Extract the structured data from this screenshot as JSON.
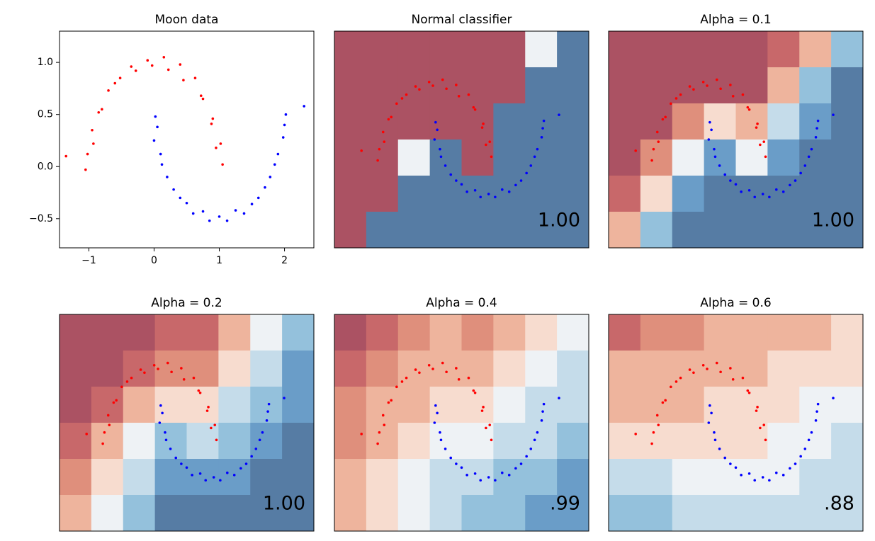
{
  "chart_data": [
    {
      "type": "scatter",
      "title": "Moon data",
      "xlim": [
        -1.45,
        2.45
      ],
      "ylim": [
        -0.78,
        1.3
      ],
      "xticks": [
        {
          "value": -1,
          "label": "−1"
        },
        0,
        1,
        2
      ],
      "yticks": [
        {
          "value": -0.5,
          "label": "−0.5"
        },
        {
          "value": 0,
          "label": "0.0"
        },
        0.5,
        {
          "value": 1,
          "label": "1.0"
        }
      ],
      "series": [
        {
          "color": "#ff0000",
          "x": [
            1.05,
            0.95,
            1.02,
            0.88,
            0.9,
            0.75,
            0.72,
            0.63,
            0.45,
            0.4,
            0.22,
            0.15,
            -0.03,
            -0.1,
            -0.28,
            -0.35,
            -0.52,
            -0.6,
            -0.7,
            -0.8,
            -0.85,
            -0.95,
            -0.93,
            -1.02,
            -1.05,
            -1.35
          ],
          "y": [
            0.02,
            0.18,
            0.22,
            0.41,
            0.46,
            0.65,
            0.68,
            0.85,
            0.83,
            0.98,
            0.93,
            1.05,
            0.97,
            1.02,
            0.92,
            0.96,
            0.85,
            0.8,
            0.73,
            0.55,
            0.52,
            0.35,
            0.22,
            0.12,
            -0.03,
            0.1
          ]
        },
        {
          "color": "#0000ff",
          "x": [
            0.02,
            0.05,
            0.0,
            0.1,
            0.12,
            0.2,
            0.3,
            0.4,
            0.5,
            0.6,
            0.75,
            0.85,
            1.0,
            1.12,
            1.25,
            1.38,
            1.5,
            1.6,
            1.7,
            1.78,
            1.85,
            1.9,
            1.98,
            2.0,
            2.02,
            2.3
          ],
          "y": [
            0.48,
            0.38,
            0.25,
            0.12,
            0.02,
            -0.1,
            -0.22,
            -0.3,
            -0.35,
            -0.45,
            -0.43,
            -0.52,
            -0.48,
            -0.52,
            -0.42,
            -0.45,
            -0.36,
            -0.3,
            -0.2,
            -0.1,
            0.02,
            0.12,
            0.28,
            0.4,
            0.5,
            0.58
          ]
        }
      ]
    },
    {
      "type": "contour",
      "title": "Normal classifier",
      "score": "1.00",
      "xlim": [
        -1.85,
        2.85
      ],
      "ylim": [
        -1.2,
        1.7
      ],
      "colormap": [
        "#ab5263",
        "#c8686a",
        "#df8f7c",
        "#eeb49d",
        "#f7dccf",
        "#eef2f5",
        "#c5dcea",
        "#94c1dc",
        "#6a9dc8",
        "#567ca4"
      ],
      "z": [
        [
          0,
          0,
          0,
          0,
          0,
          0,
          0.5,
          1
        ],
        [
          0,
          0,
          0,
          0,
          0,
          0,
          1,
          1
        ],
        [
          0,
          0,
          0,
          0,
          0,
          1,
          1,
          1
        ],
        [
          0,
          0,
          0.5,
          1,
          0,
          1,
          1,
          1
        ],
        [
          0,
          0,
          1,
          1,
          1,
          1,
          1,
          1
        ],
        [
          0,
          1,
          1,
          1,
          1,
          1,
          1,
          1
        ]
      ]
    },
    {
      "type": "contour",
      "title": "Alpha = 0.1",
      "score": "1.00",
      "xlim": [
        -1.85,
        2.85
      ],
      "ylim": [
        -1.2,
        1.7
      ],
      "colormap": [
        "#ab5263",
        "#c8686a",
        "#df8f7c",
        "#eeb49d",
        "#f7dccf",
        "#eef2f5",
        "#c5dcea",
        "#94c1dc",
        "#6a9dc8",
        "#567ca4"
      ],
      "z": [
        [
          0,
          0,
          0,
          0,
          0,
          0.1,
          0.35,
          0.7
        ],
        [
          0,
          0,
          0,
          0,
          0.05,
          0.3,
          0.7,
          0.9
        ],
        [
          0,
          0.05,
          0.2,
          0.45,
          0.3,
          0.6,
          0.85,
          0.95
        ],
        [
          0.05,
          0.2,
          0.5,
          0.8,
          0.5,
          0.85,
          0.95,
          1
        ],
        [
          0.15,
          0.45,
          0.8,
          0.95,
          0.9,
          0.95,
          1,
          1
        ],
        [
          0.3,
          0.7,
          0.95,
          1,
          1,
          1,
          1,
          1
        ]
      ]
    },
    {
      "type": "contour",
      "title": "Alpha = 0.2",
      "score": "1.00",
      "xlim": [
        -1.85,
        2.85
      ],
      "ylim": [
        -1.2,
        1.7
      ],
      "colormap": [
        "#ab5263",
        "#c8686a",
        "#df8f7c",
        "#eeb49d",
        "#f7dccf",
        "#eef2f5",
        "#c5dcea",
        "#94c1dc",
        "#6a9dc8",
        "#567ca4"
      ],
      "z": [
        [
          0,
          0,
          0.05,
          0.1,
          0.15,
          0.35,
          0.55,
          0.7
        ],
        [
          0,
          0.05,
          0.15,
          0.2,
          0.2,
          0.4,
          0.65,
          0.8
        ],
        [
          0.05,
          0.15,
          0.3,
          0.45,
          0.4,
          0.6,
          0.75,
          0.85
        ],
        [
          0.15,
          0.3,
          0.5,
          0.7,
          0.6,
          0.75,
          0.85,
          0.9
        ],
        [
          0.25,
          0.4,
          0.65,
          0.85,
          0.8,
          0.85,
          0.9,
          0.95
        ],
        [
          0.3,
          0.5,
          0.75,
          0.95,
          0.9,
          0.9,
          0.95,
          0.95
        ]
      ]
    },
    {
      "type": "contour",
      "title": "Alpha = 0.4",
      "score": ".99",
      "xlim": [
        -1.85,
        2.85
      ],
      "ylim": [
        -1.2,
        1.7
      ],
      "colormap": [
        "#ab5263",
        "#c8686a",
        "#df8f7c",
        "#eeb49d",
        "#f7dccf",
        "#eef2f5",
        "#c5dcea",
        "#94c1dc",
        "#6a9dc8",
        "#567ca4"
      ],
      "z": [
        [
          0.05,
          0.15,
          0.25,
          0.3,
          0.2,
          0.35,
          0.45,
          0.5
        ],
        [
          0.15,
          0.25,
          0.3,
          0.3,
          0.3,
          0.45,
          0.55,
          0.6
        ],
        [
          0.2,
          0.3,
          0.35,
          0.45,
          0.45,
          0.55,
          0.6,
          0.65
        ],
        [
          0.25,
          0.35,
          0.45,
          0.55,
          0.55,
          0.6,
          0.65,
          0.7
        ],
        [
          0.3,
          0.4,
          0.5,
          0.6,
          0.65,
          0.7,
          0.75,
          0.8
        ],
        [
          0.35,
          0.45,
          0.55,
          0.65,
          0.75,
          0.75,
          0.8,
          0.85
        ]
      ]
    },
    {
      "type": "contour",
      "title": "Alpha = 0.6",
      "score": ".88",
      "xlim": [
        -1.85,
        2.85
      ],
      "ylim": [
        -1.2,
        1.7
      ],
      "colormap": [
        "#ab5263",
        "#c8686a",
        "#df8f7c",
        "#eeb49d",
        "#f7dccf",
        "#eef2f5",
        "#c5dcea",
        "#94c1dc",
        "#6a9dc8",
        "#567ca4"
      ],
      "z": [
        [
          0.1,
          0.2,
          0.25,
          0.3,
          0.3,
          0.35,
          0.35,
          0.4
        ],
        [
          0.3,
          0.3,
          0.3,
          0.3,
          0.35,
          0.4,
          0.4,
          0.45
        ],
        [
          0.35,
          0.35,
          0.35,
          0.4,
          0.4,
          0.45,
          0.5,
          0.5
        ],
        [
          0.45,
          0.45,
          0.45,
          0.45,
          0.45,
          0.5,
          0.55,
          0.6
        ],
        [
          0.6,
          0.6,
          0.55,
          0.55,
          0.55,
          0.55,
          0.6,
          0.6
        ],
        [
          0.75,
          0.7,
          0.65,
          0.6,
          0.6,
          0.6,
          0.6,
          0.65
        ]
      ]
    }
  ]
}
